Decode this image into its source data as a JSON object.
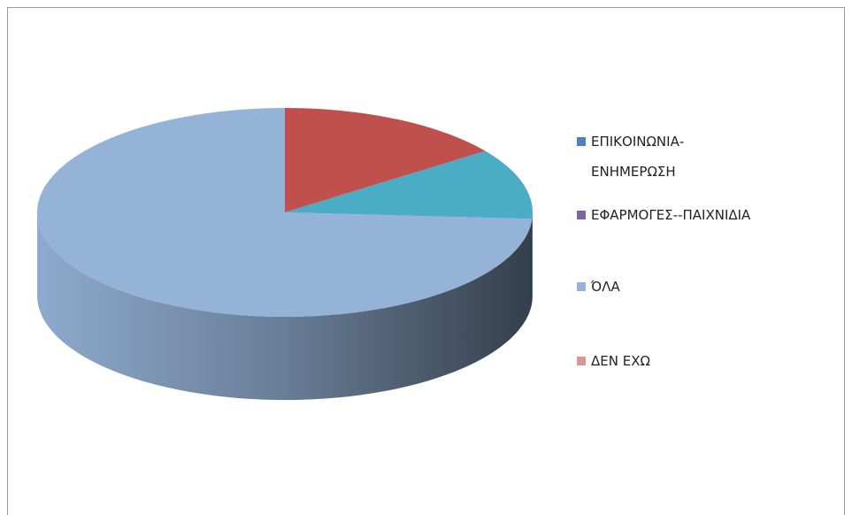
{
  "chart_data": {
    "type": "pie",
    "style": "3d",
    "categories": [
      "ΕΠΙΚΟΙΝΩΝΙΑ-ΕΝΗΜΕΡΩΣΗ",
      "ΕΦΑΡΜΟΓΕΣ--ΠΑΙΧΝΙΔΙΑ",
      "ΌΛΑ",
      "ΔΕΝ ΕΧΩ"
    ],
    "values": [
      15,
      11,
      74,
      0
    ],
    "legend_colors": [
      "#4f81bd",
      "#8064a2",
      "#95b3d7",
      "#d99694"
    ],
    "colors": [
      "#c0504d",
      "#4bacc6",
      "#95b3d7",
      "#d99694"
    ],
    "legend": "right"
  }
}
